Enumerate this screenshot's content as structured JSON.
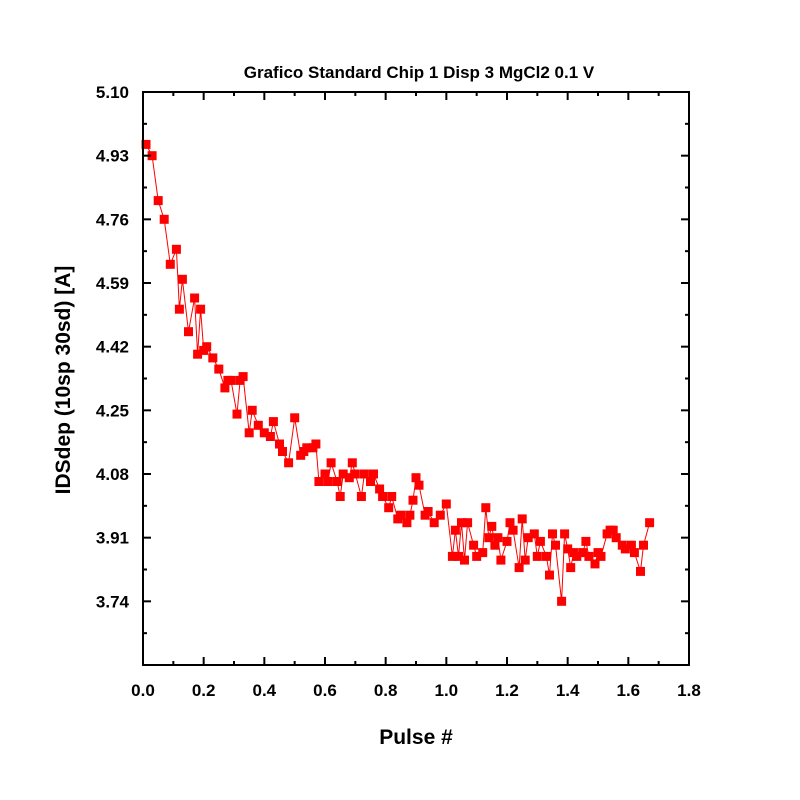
{
  "chart_data": {
    "type": "line",
    "title": "Grafico Standard Chip 1 Disp 3 MgCl2 0.1 V",
    "xlabel": "Pulse #",
    "ylabel": "IDSdep (10sp 30sd) [A]",
    "xlim": [
      0.0,
      1.8
    ],
    "ylim": [
      3.57,
      5.1
    ],
    "x_ticks": [
      "0.0",
      "0.2",
      "0.4",
      "0.6",
      "0.8",
      "1.0",
      "1.2",
      "1.4",
      "1.6",
      "1.8"
    ],
    "y_ticks": [
      "5.10",
      "4.93",
      "4.76",
      "4.59",
      "4.42",
      "4.25",
      "4.08",
      "3.91",
      "3.74"
    ],
    "x_tick_values": [
      0.0,
      0.2,
      0.4,
      0.6,
      0.8,
      1.0,
      1.2,
      1.4,
      1.6,
      1.8
    ],
    "y_tick_values": [
      5.1,
      4.93,
      4.76,
      4.59,
      4.42,
      4.25,
      4.08,
      3.91,
      3.74
    ],
    "marker": "square",
    "color": "#ff0000",
    "grid": false,
    "series": [
      {
        "x": [
          0.01,
          0.03,
          0.05,
          0.07,
          0.09,
          0.11,
          0.12,
          0.13,
          0.15,
          0.17,
          0.18,
          0.19,
          0.2,
          0.21,
          0.23,
          0.25,
          0.27,
          0.28,
          0.29,
          0.31,
          0.32,
          0.33,
          0.35,
          0.36,
          0.38,
          0.4,
          0.42,
          0.43,
          0.45,
          0.46,
          0.48,
          0.5,
          0.52,
          0.53,
          0.54,
          0.56,
          0.57,
          0.58,
          0.6,
          0.61,
          0.62,
          0.64,
          0.65,
          0.66,
          0.68,
          0.69,
          0.7,
          0.72,
          0.73,
          0.75,
          0.76,
          0.78,
          0.79,
          0.81,
          0.82,
          0.84,
          0.85,
          0.87,
          0.88,
          0.89,
          0.9,
          0.91,
          0.93,
          0.94,
          0.96,
          0.98,
          1.0,
          1.02,
          1.03,
          1.04,
          1.05,
          1.06,
          1.07,
          1.09,
          1.1,
          1.12,
          1.13,
          1.14,
          1.15,
          1.16,
          1.17,
          1.18,
          1.2,
          1.21,
          1.22,
          1.24,
          1.25,
          1.26,
          1.27,
          1.29,
          1.3,
          1.31,
          1.33,
          1.34,
          1.35,
          1.36,
          1.38,
          1.39,
          1.4,
          1.41,
          1.42,
          1.43,
          1.45,
          1.46,
          1.47,
          1.49,
          1.5,
          1.51,
          1.53,
          1.54,
          1.55,
          1.56,
          1.58,
          1.59,
          1.61,
          1.62,
          1.64,
          1.65,
          1.67
        ],
        "values": [
          4.96,
          4.93,
          4.81,
          4.76,
          4.64,
          4.68,
          4.52,
          4.6,
          4.46,
          4.55,
          4.4,
          4.52,
          4.41,
          4.42,
          4.39,
          4.36,
          4.31,
          4.33,
          4.33,
          4.24,
          4.33,
          4.34,
          4.19,
          4.25,
          4.21,
          4.19,
          4.18,
          4.22,
          4.16,
          4.14,
          4.11,
          4.23,
          4.13,
          4.14,
          4.15,
          4.15,
          4.16,
          4.06,
          4.08,
          4.06,
          4.11,
          4.06,
          4.02,
          4.08,
          4.07,
          4.11,
          4.08,
          4.02,
          4.08,
          4.06,
          4.08,
          4.04,
          4.02,
          3.99,
          4.02,
          3.96,
          3.97,
          3.95,
          3.97,
          4.01,
          4.07,
          4.05,
          3.97,
          3.98,
          3.95,
          3.97,
          4.0,
          3.86,
          3.93,
          3.86,
          3.95,
          3.85,
          3.95,
          3.89,
          3.86,
          3.87,
          3.99,
          3.91,
          3.94,
          3.89,
          3.91,
          3.85,
          3.9,
          3.95,
          3.93,
          3.83,
          3.96,
          3.85,
          3.91,
          3.92,
          3.86,
          3.9,
          3.86,
          3.81,
          3.92,
          3.89,
          3.74,
          3.92,
          3.88,
          3.83,
          3.87,
          3.86,
          3.87,
          3.9,
          3.86,
          3.84,
          3.87,
          3.86,
          3.92,
          3.93,
          3.93,
          3.91,
          3.89,
          3.88,
          3.89,
          3.87,
          3.82,
          3.89,
          3.95
        ]
      }
    ]
  }
}
